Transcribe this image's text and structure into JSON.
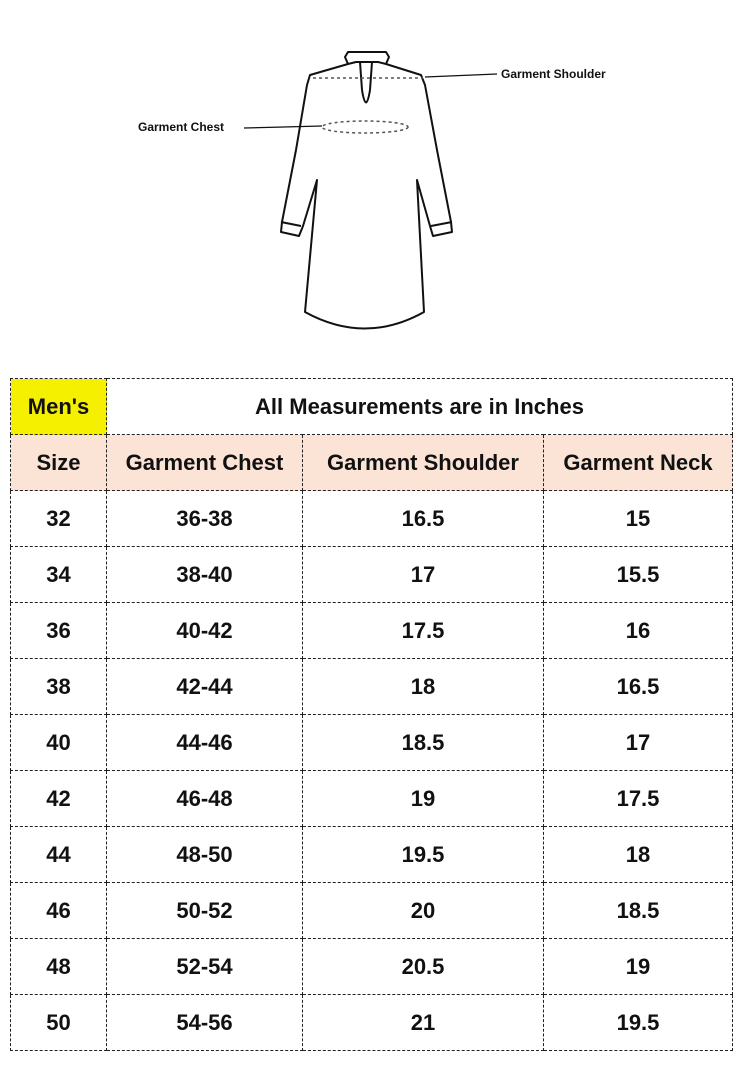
{
  "diagram": {
    "shoulder_label": "Garment Shoulder",
    "chest_label": "Garment Chest"
  },
  "table": {
    "corner_label": "Men's",
    "title": "All Measurements are in Inches",
    "headers": [
      "Size",
      "Garment Chest",
      "Garment Shoulder",
      "Garment Neck"
    ],
    "rows": [
      [
        "32",
        "36-38",
        "16.5",
        "15"
      ],
      [
        "34",
        "38-40",
        "17",
        "15.5"
      ],
      [
        "36",
        "40-42",
        "17.5",
        "16"
      ],
      [
        "38",
        "42-44",
        "18",
        "16.5"
      ],
      [
        "40",
        "44-46",
        "18.5",
        "17"
      ],
      [
        "42",
        "46-48",
        "19",
        "17.5"
      ],
      [
        "44",
        "48-50",
        "19.5",
        "18"
      ],
      [
        "46",
        "50-52",
        "20",
        "18.5"
      ],
      [
        "48",
        "52-54",
        "20.5",
        "19"
      ],
      [
        "50",
        "54-56",
        "21",
        "19.5"
      ]
    ]
  },
  "colors": {
    "corner": "#f5ef00",
    "header": "#fbe3d6"
  }
}
